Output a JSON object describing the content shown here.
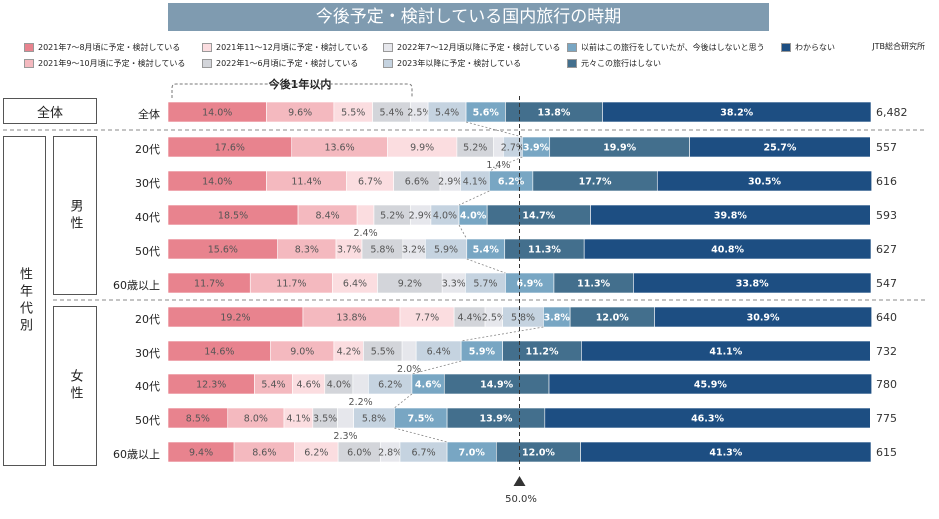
{
  "title": "今後予定・検討している国内旅行の時期",
  "source": "JTB総合研究所",
  "within_year_label": "今後1年以内",
  "center_marker_label": "50.0%",
  "groups": {
    "all": "全体",
    "axis": "性年代別",
    "male": "男性",
    "female": "女性"
  },
  "legend": [
    {
      "label": "2021年7～8月頃に予定・検討している",
      "color": "#e8838e"
    },
    {
      "label": "2021年9～10月頃に予定・検討している",
      "color": "#f4b9bf"
    },
    {
      "label": "2021年11～12月頃に予定・検討している",
      "color": "#fbdde0"
    },
    {
      "label": "2022年1～6月頃に予定・検討している",
      "color": "#d3d5da"
    },
    {
      "label": "2022年7～12月頃以降に予定・検討している",
      "color": "#e6e7ec"
    },
    {
      "label": "2023年以降に予定・検討している",
      "color": "#c5d3e0"
    },
    {
      "label": "以前はこの旅行をしていたが、今後はしないと思う",
      "color": "#78a6c3"
    },
    {
      "label": "元々この旅行はしない",
      "color": "#436f8d"
    },
    {
      "label": "わからない",
      "color": "#1d4e82"
    }
  ],
  "chart_data": {
    "type": "bar",
    "orientation": "horizontal",
    "stacked": "100%",
    "title": "今後予定・検討している国内旅行の時期",
    "reference_line": 50.0,
    "series": [
      {
        "name": "2021年7～8月頃に予定・検討している"
      },
      {
        "name": "2021年9～10月頃に予定・検討している"
      },
      {
        "name": "2021年11～12月頃に予定・検討している"
      },
      {
        "name": "2022年1～6月頃に予定・検討している"
      },
      {
        "name": "2022年7～12月頃以降に予定・検討している"
      },
      {
        "name": "2023年以降に予定・検討している"
      },
      {
        "name": "以前はこの旅行をしていたが、今後はしないと思う"
      },
      {
        "name": "元々この旅行はしない"
      },
      {
        "name": "わからない"
      }
    ],
    "rows": [
      {
        "group": "全体",
        "label": "全体",
        "total": "6,482",
        "values": [
          14.0,
          9.6,
          5.5,
          5.4,
          2.5,
          5.4,
          5.6,
          13.8,
          38.2
        ]
      },
      {
        "group": "男性",
        "label": "20代",
        "total": "557",
        "values": [
          17.6,
          13.6,
          9.9,
          5.2,
          1.4,
          2.7,
          3.9,
          19.9,
          25.7
        ]
      },
      {
        "group": "男性",
        "label": "30代",
        "total": "616",
        "values": [
          14.0,
          11.4,
          6.7,
          6.6,
          2.9,
          4.1,
          6.2,
          17.7,
          30.5
        ]
      },
      {
        "group": "男性",
        "label": "40代",
        "total": "593",
        "values": [
          18.5,
          8.4,
          2.4,
          5.2,
          2.9,
          4.0,
          4.0,
          14.7,
          39.8
        ]
      },
      {
        "group": "男性",
        "label": "50代",
        "total": "627",
        "values": [
          15.6,
          8.3,
          3.7,
          5.8,
          3.2,
          5.9,
          5.4,
          11.3,
          40.8
        ]
      },
      {
        "group": "男性",
        "label": "60歳以上",
        "total": "547",
        "values": [
          11.7,
          11.7,
          6.4,
          9.2,
          3.3,
          5.7,
          6.9,
          11.3,
          33.8
        ]
      },
      {
        "group": "女性",
        "label": "20代",
        "total": "640",
        "values": [
          19.2,
          13.8,
          7.7,
          4.4,
          2.5,
          5.8,
          3.8,
          12.0,
          30.9
        ]
      },
      {
        "group": "女性",
        "label": "30代",
        "total": "732",
        "values": [
          14.6,
          9.0,
          4.2,
          5.5,
          2.0,
          6.4,
          5.9,
          11.2,
          41.1
        ]
      },
      {
        "group": "女性",
        "label": "40代",
        "total": "780",
        "values": [
          12.3,
          5.4,
          4.6,
          4.0,
          2.2,
          6.2,
          4.6,
          14.9,
          45.9
        ]
      },
      {
        "group": "女性",
        "label": "50代",
        "total": "775",
        "values": [
          8.5,
          8.0,
          4.1,
          3.5,
          2.3,
          5.8,
          7.5,
          13.9,
          46.3
        ]
      },
      {
        "group": "女性",
        "label": "60歳以上",
        "total": "615",
        "values": [
          9.4,
          8.6,
          6.2,
          6.0,
          2.8,
          6.7,
          7.0,
          12.0,
          41.3
        ]
      }
    ]
  }
}
